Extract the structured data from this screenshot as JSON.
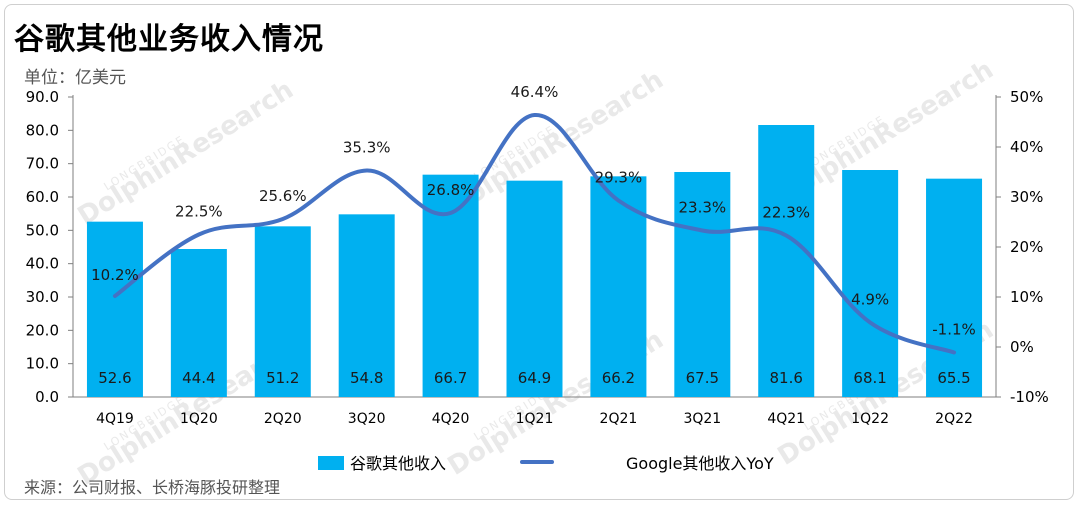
{
  "title": "谷歌其他业务收入情况",
  "unit": "单位：亿美元",
  "source": "来源：公司财报、长桥海豚投研整理",
  "watermark": "DolphinResearch",
  "watermark_small": "LONGBRIDGE",
  "colors": {
    "bar": "#00b0f0",
    "line": "#4472c4"
  },
  "chart_data": {
    "type": "bar",
    "categories": [
      "4Q19",
      "1Q20",
      "2Q20",
      "3Q20",
      "4Q20",
      "1Q21",
      "2Q21",
      "3Q21",
      "4Q21",
      "1Q22",
      "2Q22"
    ],
    "series": [
      {
        "name": "谷歌其他收入",
        "type": "bar",
        "axis": "left",
        "values": [
          52.6,
          44.4,
          51.2,
          54.8,
          66.7,
          64.9,
          66.2,
          67.5,
          81.6,
          68.1,
          65.5
        ]
      },
      {
        "name": "Google其他收入YoY",
        "type": "line",
        "axis": "right",
        "values": [
          10.2,
          22.5,
          25.6,
          35.3,
          26.8,
          46.4,
          29.3,
          23.3,
          22.3,
          4.9,
          -1.1
        ]
      }
    ],
    "bar_labels": [
      "52.6",
      "44.4",
      "51.2",
      "54.8",
      "66.7",
      "64.9",
      "66.2",
      "67.5",
      "81.6",
      "68.1",
      "65.5"
    ],
    "line_labels": [
      "10.2%",
      "22.5%",
      "25.6%",
      "35.3%",
      "26.8%",
      "46.4%",
      "29.3%",
      "23.3%",
      "22.3%",
      "4.9%",
      "-1.1%"
    ],
    "left_ticks": [
      "0.0",
      "10.0",
      "20.0",
      "30.0",
      "40.0",
      "50.0",
      "60.0",
      "70.0",
      "80.0",
      "90.0"
    ],
    "right_ticks": [
      "-10%",
      "0%",
      "10%",
      "20%",
      "30%",
      "40%",
      "50%"
    ],
    "ylim": [
      0,
      90
    ],
    "y2lim": [
      -10,
      50
    ],
    "legend": "bottom",
    "grid": false
  }
}
